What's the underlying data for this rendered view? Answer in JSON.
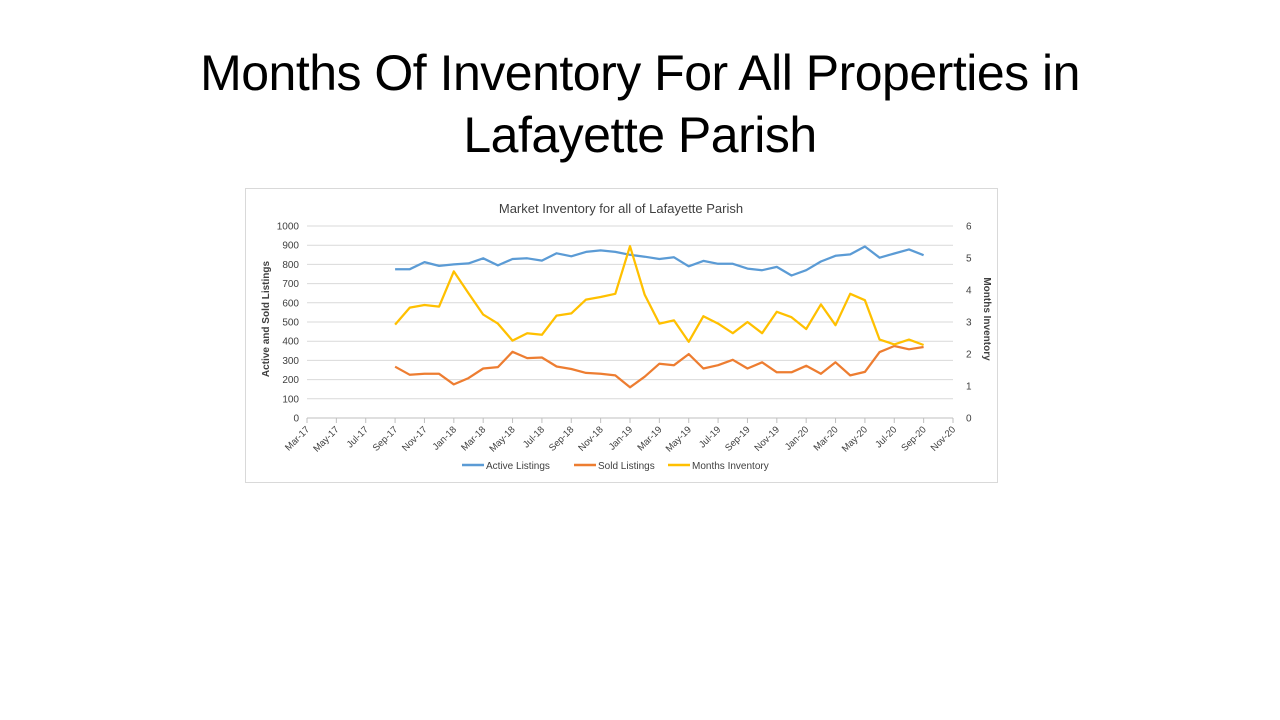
{
  "slide": {
    "title_line1": "Months Of Inventory For All Properties in",
    "title_line2": "Lafayette Parish"
  },
  "chart_data": {
    "type": "line",
    "title": "Market Inventory for all of Lafayette Parish",
    "xlabel": "",
    "ylabel": "Active and Sold Listings",
    "y2label": "Months Inventory",
    "ylim": [
      0,
      1000
    ],
    "y2lim": [
      0,
      6
    ],
    "yticks": [
      "0",
      "100",
      "200",
      "300",
      "400",
      "500",
      "600",
      "700",
      "800",
      "900",
      "1000"
    ],
    "y2ticks": [
      "0",
      "1",
      "2",
      "3",
      "4",
      "5",
      "6"
    ],
    "xticks": [
      "Mar-17",
      "May-17",
      "Jul-17",
      "Sep-17",
      "Nov-17",
      "Jan-18",
      "Mar-18",
      "May-18",
      "Jul-18",
      "Sep-18",
      "Nov-18",
      "Jan-19",
      "Mar-19",
      "May-19",
      "Jul-19",
      "Sep-19",
      "Nov-19",
      "Jan-20",
      "Mar-20",
      "May-20",
      "Jul-20",
      "Sep-20",
      "Nov-20"
    ],
    "grid": true,
    "legend_position": "bottom",
    "x": [
      "Sep-17",
      "Oct-17",
      "Nov-17",
      "Dec-17",
      "Jan-18",
      "Feb-18",
      "Mar-18",
      "Apr-18",
      "May-18",
      "Jun-18",
      "Jul-18",
      "Aug-18",
      "Sep-18",
      "Oct-18",
      "Nov-18",
      "Dec-18",
      "Jan-19",
      "Feb-19",
      "Mar-19",
      "Apr-19",
      "May-19",
      "Jun-19",
      "Jul-19",
      "Aug-19",
      "Sep-19",
      "Oct-19",
      "Nov-19",
      "Dec-19",
      "Jan-20",
      "Feb-20",
      "Mar-20",
      "Apr-20",
      "May-20",
      "Jun-20",
      "Jul-20",
      "Aug-20",
      "Sep-20"
    ],
    "series": [
      {
        "name": "Active Listings",
        "axis": "left",
        "color": "#5b9bd5",
        "values": [
          775,
          775,
          812,
          792,
          800,
          805,
          832,
          795,
          828,
          832,
          820,
          858,
          842,
          865,
          873,
          865,
          850,
          840,
          828,
          837,
          790,
          818,
          803,
          803,
          778,
          770,
          787,
          742,
          770,
          815,
          845,
          852,
          893,
          835,
          857,
          878,
          848
        ]
      },
      {
        "name": "Sold Listings",
        "axis": "left",
        "color": "#ed7d31",
        "values": [
          267,
          225,
          230,
          230,
          175,
          208,
          258,
          265,
          345,
          312,
          315,
          268,
          255,
          235,
          230,
          222,
          160,
          215,
          283,
          275,
          333,
          258,
          275,
          303,
          258,
          290,
          238,
          238,
          272,
          230,
          290,
          222,
          240,
          343,
          375,
          358,
          370
        ]
      },
      {
        "name": "Months Inventory",
        "axis": "right",
        "color": "#ffc000",
        "values": [
          2.92,
          3.45,
          3.53,
          3.48,
          4.58,
          3.9,
          3.23,
          2.95,
          2.42,
          2.65,
          2.6,
          3.2,
          3.27,
          3.7,
          3.78,
          3.88,
          5.37,
          3.85,
          2.95,
          3.05,
          2.38,
          3.18,
          2.95,
          2.65,
          3.0,
          2.65,
          3.32,
          3.15,
          2.78,
          3.55,
          2.9,
          3.88,
          3.68,
          2.45,
          2.3,
          2.45,
          2.28
        ]
      }
    ]
  }
}
